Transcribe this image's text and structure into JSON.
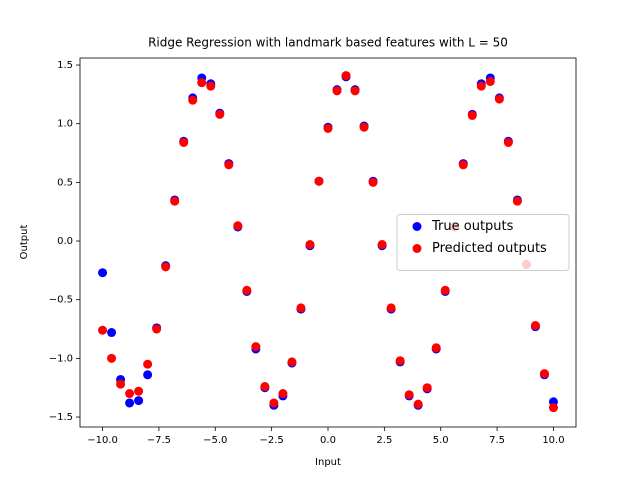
{
  "chart_data": {
    "type": "scatter",
    "title": "Ridge Regression with landmark based features with L = 50",
    "x_label": "Input",
    "y_label": "Output",
    "x": [
      -10.0,
      -9.6,
      -9.2,
      -8.8,
      -8.4,
      -8.0,
      -7.6,
      -7.2,
      -6.8,
      -6.4,
      -6.0,
      -5.6,
      -5.2,
      -4.8,
      -4.4,
      -4.0,
      -3.6,
      -3.2,
      -2.8,
      -2.4,
      -2.0,
      -1.6,
      -1.2,
      -0.8,
      -0.4,
      0.0,
      0.4,
      0.8,
      1.2,
      1.6,
      2.0,
      2.4,
      2.8,
      3.2,
      3.6,
      4.0,
      4.4,
      4.8,
      5.2,
      5.6,
      6.0,
      6.4,
      6.8,
      7.2,
      7.6,
      8.0,
      8.4,
      8.8,
      9.2,
      9.6,
      10.0
    ],
    "series": [
      {
        "name": "True outputs",
        "color": "#0000ff",
        "values": [
          -0.27,
          -0.78,
          -1.18,
          -1.38,
          -1.36,
          -1.14,
          -0.74,
          -0.21,
          0.35,
          0.85,
          1.22,
          1.39,
          1.34,
          1.09,
          0.66,
          0.12,
          -0.43,
          -0.92,
          -1.25,
          -1.4,
          -1.32,
          -1.04,
          -0.58,
          -0.04,
          0.51,
          0.97,
          1.29,
          1.4,
          1.29,
          0.98,
          0.51,
          -0.04,
          -0.58,
          -1.03,
          -1.32,
          -1.4,
          -1.26,
          -0.92,
          -0.43,
          0.12,
          0.66,
          1.08,
          1.34,
          1.39,
          1.22,
          0.85,
          0.35,
          -0.2,
          -0.73,
          -1.14,
          -1.37
        ]
      },
      {
        "name": "Predicted outputs",
        "color": "#ff0000",
        "values": [
          -0.76,
          -1.0,
          -1.22,
          -1.3,
          -1.28,
          -1.05,
          -0.75,
          -0.22,
          0.34,
          0.84,
          1.2,
          1.35,
          1.32,
          1.08,
          0.65,
          0.13,
          -0.42,
          -0.9,
          -1.24,
          -1.38,
          -1.3,
          -1.03,
          -0.57,
          -0.03,
          0.51,
          0.96,
          1.28,
          1.41,
          1.28,
          0.97,
          0.5,
          -0.03,
          -0.57,
          -1.02,
          -1.31,
          -1.39,
          -1.25,
          -0.91,
          -0.42,
          0.12,
          0.65,
          1.07,
          1.32,
          1.36,
          1.21,
          0.84,
          0.34,
          -0.2,
          -0.72,
          -1.13,
          -1.42
        ]
      }
    ],
    "xlim": [
      -11,
      11
    ],
    "ylim": [
      -1.585,
      1.56
    ],
    "xticks": [
      {
        "value": -10,
        "label": "−10.0"
      },
      {
        "value": -7.5,
        "label": "−7.5"
      },
      {
        "value": -5,
        "label": "−5.0"
      },
      {
        "value": -2.5,
        "label": "−2.5"
      },
      {
        "value": 0,
        "label": "0.0"
      },
      2.5,
      {
        "value": 5,
        "label": "5.0"
      },
      7.5,
      {
        "value": 10,
        "label": "10.0"
      }
    ],
    "yticks": [
      {
        "value": -1.5,
        "label": "−1.5"
      },
      {
        "value": -1,
        "label": "−1.0"
      },
      {
        "value": -0.5,
        "label": "−0.5"
      },
      {
        "value": 0,
        "label": "0.0"
      },
      0.5,
      {
        "value": 1,
        "label": "1.0"
      },
      1.5
    ],
    "legend": "center right",
    "grid": false
  }
}
